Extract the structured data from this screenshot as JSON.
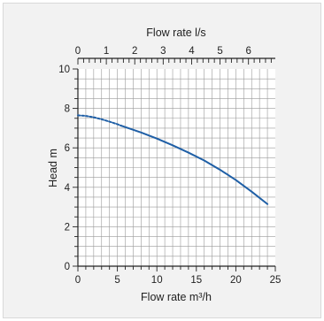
{
  "chart_data": {
    "type": "line",
    "title": "",
    "xlabel": "Flow rate m³/h",
    "ylabel": "Head m",
    "x2label": "Flow rate l/s",
    "xlim": [
      0,
      25
    ],
    "ylim": [
      0,
      10
    ],
    "x2lim": [
      0,
      6.944
    ],
    "xticks": [
      0,
      5,
      10,
      15,
      20,
      25
    ],
    "yticks": [
      0,
      2,
      4,
      6,
      8,
      10
    ],
    "x2ticks": [
      0,
      1,
      2,
      3,
      4,
      5,
      6
    ],
    "grid": true,
    "colors": {
      "curve": "#1f5fa6",
      "grid": "#9a9a9a",
      "axis": "#222222"
    },
    "series": [
      {
        "dashed": {
          "x": [
            0,
            1,
            2,
            3,
            4,
            5,
            5.5
          ],
          "y": [
            7.65,
            7.62,
            7.55,
            7.45,
            7.33,
            7.2,
            7.12
          ]
        },
        "solid": {
          "x": [
            5.5,
            8,
            10,
            12,
            14,
            16,
            18,
            20,
            22,
            24
          ],
          "y": [
            7.12,
            6.78,
            6.47,
            6.13,
            5.76,
            5.36,
            4.89,
            4.37,
            3.78,
            3.15
          ]
        }
      }
    ]
  }
}
